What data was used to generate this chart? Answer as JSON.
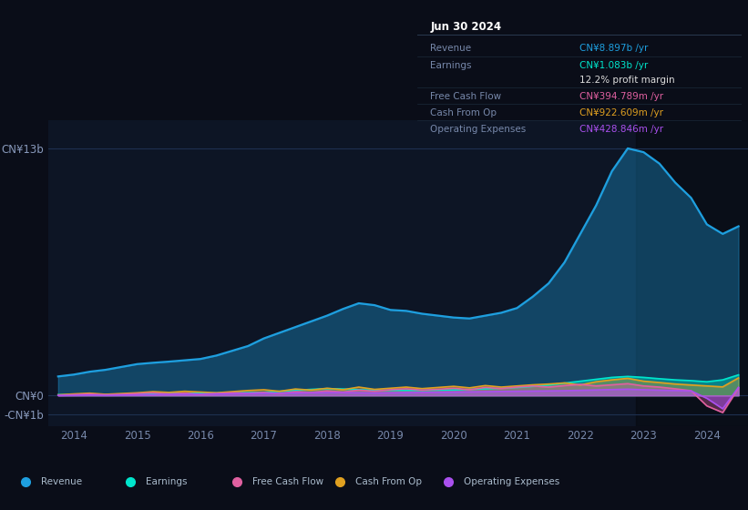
{
  "background_color": "#0a0d18",
  "chart_bg_color": "#0d1525",
  "title": "Jun 30 2024",
  "revenue_color": "#1e9fdf",
  "earnings_color": "#00e5cc",
  "fcf_color": "#e060a0",
  "cashfromop_color": "#e0a020",
  "opex_color": "#aa50ee",
  "ytick_labels": [
    "CN¥13b",
    "CN¥0",
    "-CN¥1b"
  ],
  "ytick_values": [
    13000000000,
    0,
    -1000000000
  ],
  "ylim": [
    -1600000000,
    14500000000
  ],
  "xlim": [
    2013.6,
    2024.65
  ],
  "xtick_labels": [
    "2014",
    "2015",
    "2016",
    "2017",
    "2018",
    "2019",
    "2020",
    "2021",
    "2022",
    "2023",
    "2024"
  ],
  "xtick_values": [
    2014,
    2015,
    2016,
    2017,
    2018,
    2019,
    2020,
    2021,
    2022,
    2023,
    2024
  ],
  "legend_items": [
    {
      "label": "Revenue",
      "color": "#1e9fdf"
    },
    {
      "label": "Earnings",
      "color": "#00e5cc"
    },
    {
      "label": "Free Cash Flow",
      "color": "#e060a0"
    },
    {
      "label": "Cash From Op",
      "color": "#e0a020"
    },
    {
      "label": "Operating Expenses",
      "color": "#aa50ee"
    }
  ],
  "table_rows": [
    {
      "label": "Revenue",
      "value": "CN¥8.897b /yr",
      "color": "#1e9fdf",
      "divider": true
    },
    {
      "label": "Earnings",
      "value": "CN¥1.083b /yr",
      "color": "#00e5cc",
      "divider": false
    },
    {
      "label": "",
      "value": "12.2% profit margin",
      "color": "#dddddd",
      "divider": true
    },
    {
      "label": "Free Cash Flow",
      "value": "CN¥394.789m /yr",
      "color": "#e060a0",
      "divider": true
    },
    {
      "label": "Cash From Op",
      "value": "CN¥922.609m /yr",
      "color": "#e0a020",
      "divider": true
    },
    {
      "label": "Operating Expenses",
      "value": "CN¥428.846m /yr",
      "color": "#aa50ee",
      "divider": false
    }
  ]
}
